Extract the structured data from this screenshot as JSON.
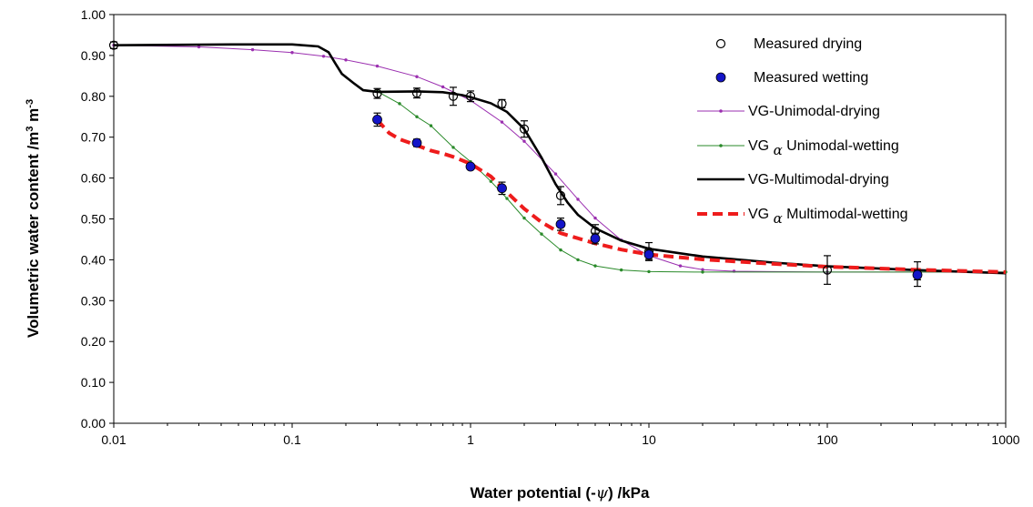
{
  "chart_data": {
    "type": "scatter",
    "xscale": "log",
    "xlim": [
      0.01,
      1000
    ],
    "ylim": [
      0.0,
      1.0
    ],
    "xticks": [
      0.01,
      0.1,
      1,
      10,
      100,
      1000
    ],
    "xtick_labels": [
      "0.01",
      "0.1",
      "1",
      "10",
      "100",
      "1000"
    ],
    "yticks": [
      0,
      0.1,
      0.2,
      0.3,
      0.4,
      0.5,
      0.6,
      0.7,
      0.8,
      0.9,
      1.0
    ],
    "ytick_labels": [
      "0.00",
      "0.10",
      "0.20",
      "0.30",
      "0.40",
      "0.50",
      "0.60",
      "0.70",
      "0.80",
      "0.90",
      "1.00"
    ],
    "xlabel": {
      "pre": "Water potential (-",
      "sym": "ψ",
      "post": ") /kPa"
    },
    "ylabel": {
      "pre": "Volumetric water content /m",
      "sup1": "3",
      "mid": " m",
      "sup2": "-3"
    },
    "grid": false,
    "legend_position": "top-right",
    "series": [
      {
        "name": "Measured drying",
        "kind": "marker-open",
        "color": "#000000",
        "points": [
          {
            "x": 0.01,
            "y": 0.925,
            "err": 0.008
          },
          {
            "x": 0.3,
            "y": 0.807,
            "err": 0.012
          },
          {
            "x": 0.5,
            "y": 0.808,
            "err": 0.012
          },
          {
            "x": 0.8,
            "y": 0.8,
            "err": 0.022
          },
          {
            "x": 1.0,
            "y": 0.8,
            "err": 0.013
          },
          {
            "x": 1.5,
            "y": 0.782,
            "err": 0.01
          },
          {
            "x": 2.0,
            "y": 0.72,
            "err": 0.02
          },
          {
            "x": 3.2,
            "y": 0.557,
            "err": 0.022
          },
          {
            "x": 5.0,
            "y": 0.47,
            "err": 0.016
          },
          {
            "x": 10,
            "y": 0.42,
            "err": 0.022
          },
          {
            "x": 100,
            "y": 0.375,
            "err": 0.035
          },
          {
            "x": 320,
            "y": 0.365,
            "err": 0.03
          }
        ]
      },
      {
        "name": "Measured wetting",
        "kind": "marker-filled",
        "color": "#1414c8",
        "points": [
          {
            "x": 0.3,
            "y": 0.743,
            "err": 0.016
          },
          {
            "x": 0.5,
            "y": 0.686,
            "err": 0.009
          },
          {
            "x": 1.0,
            "y": 0.628,
            "err": 0.006
          },
          {
            "x": 1.5,
            "y": 0.575,
            "err": 0.015
          },
          {
            "x": 3.2,
            "y": 0.487,
            "err": 0.015
          },
          {
            "x": 5.0,
            "y": 0.452,
            "err": 0.013
          },
          {
            "x": 10,
            "y": 0.413,
            "err": 0.012
          },
          {
            "x": 320,
            "y": 0.363,
            "err": 0.012
          }
        ]
      },
      {
        "name": "VG-Unimodal-drying",
        "kind": "line-dots",
        "color": "#9b2fb0",
        "points": [
          {
            "x": 0.01,
            "y": 0.925
          },
          {
            "x": 0.03,
            "y": 0.921
          },
          {
            "x": 0.06,
            "y": 0.914
          },
          {
            "x": 0.1,
            "y": 0.907
          },
          {
            "x": 0.15,
            "y": 0.898
          },
          {
            "x": 0.2,
            "y": 0.889
          },
          {
            "x": 0.3,
            "y": 0.874
          },
          {
            "x": 0.5,
            "y": 0.848
          },
          {
            "x": 0.7,
            "y": 0.823
          },
          {
            "x": 1.0,
            "y": 0.79
          },
          {
            "x": 1.5,
            "y": 0.737
          },
          {
            "x": 2.0,
            "y": 0.69
          },
          {
            "x": 3.0,
            "y": 0.61
          },
          {
            "x": 4.0,
            "y": 0.548
          },
          {
            "x": 5.0,
            "y": 0.502
          },
          {
            "x": 7.0,
            "y": 0.448
          },
          {
            "x": 10,
            "y": 0.41
          },
          {
            "x": 15,
            "y": 0.385
          },
          {
            "x": 20,
            "y": 0.376
          },
          {
            "x": 30,
            "y": 0.372
          },
          {
            "x": 100,
            "y": 0.37
          },
          {
            "x": 1000,
            "y": 0.37
          }
        ]
      },
      {
        "name": "Unimodal-wetting",
        "prefix": "VG",
        "kind": "line-dots",
        "color": "#2a8a2a",
        "points": [
          {
            "x": 0.3,
            "y": 0.812
          },
          {
            "x": 0.4,
            "y": 0.782
          },
          {
            "x": 0.5,
            "y": 0.75
          },
          {
            "x": 0.6,
            "y": 0.728
          },
          {
            "x": 0.8,
            "y": 0.675
          },
          {
            "x": 1.0,
            "y": 0.64
          },
          {
            "x": 1.3,
            "y": 0.592
          },
          {
            "x": 1.6,
            "y": 0.55
          },
          {
            "x": 2.0,
            "y": 0.502
          },
          {
            "x": 2.5,
            "y": 0.463
          },
          {
            "x": 3.2,
            "y": 0.424
          },
          {
            "x": 4.0,
            "y": 0.4
          },
          {
            "x": 5.0,
            "y": 0.385
          },
          {
            "x": 7.0,
            "y": 0.375
          },
          {
            "x": 10,
            "y": 0.371
          },
          {
            "x": 20,
            "y": 0.37
          },
          {
            "x": 1000,
            "y": 0.37
          }
        ]
      },
      {
        "name": "VG-Multimodal-drying",
        "kind": "line-solid",
        "color": "#000000",
        "points": [
          {
            "x": 0.01,
            "y": 0.925
          },
          {
            "x": 0.05,
            "y": 0.927
          },
          {
            "x": 0.1,
            "y": 0.927
          },
          {
            "x": 0.14,
            "y": 0.922
          },
          {
            "x": 0.16,
            "y": 0.908
          },
          {
            "x": 0.175,
            "y": 0.88
          },
          {
            "x": 0.19,
            "y": 0.855
          },
          {
            "x": 0.22,
            "y": 0.833
          },
          {
            "x": 0.25,
            "y": 0.815
          },
          {
            "x": 0.3,
            "y": 0.811
          },
          {
            "x": 0.5,
            "y": 0.812
          },
          {
            "x": 0.7,
            "y": 0.81
          },
          {
            "x": 0.9,
            "y": 0.803
          },
          {
            "x": 1.0,
            "y": 0.798
          },
          {
            "x": 1.3,
            "y": 0.783
          },
          {
            "x": 1.6,
            "y": 0.762
          },
          {
            "x": 2.0,
            "y": 0.72
          },
          {
            "x": 2.5,
            "y": 0.65
          },
          {
            "x": 3.0,
            "y": 0.585
          },
          {
            "x": 3.5,
            "y": 0.54
          },
          {
            "x": 4.0,
            "y": 0.51
          },
          {
            "x": 5.0,
            "y": 0.477
          },
          {
            "x": 7.0,
            "y": 0.447
          },
          {
            "x": 10,
            "y": 0.427
          },
          {
            "x": 20,
            "y": 0.408
          },
          {
            "x": 50,
            "y": 0.393
          },
          {
            "x": 100,
            "y": 0.384
          },
          {
            "x": 300,
            "y": 0.375
          },
          {
            "x": 1000,
            "y": 0.367
          }
        ]
      },
      {
        "name": "Multimodal-wetting",
        "prefix": "VG",
        "kind": "line-dashed",
        "color": "#ee1c1c",
        "points": [
          {
            "x": 0.3,
            "y": 0.742
          },
          {
            "x": 0.35,
            "y": 0.71
          },
          {
            "x": 0.4,
            "y": 0.695
          },
          {
            "x": 0.5,
            "y": 0.68
          },
          {
            "x": 0.6,
            "y": 0.667
          },
          {
            "x": 0.7,
            "y": 0.66
          },
          {
            "x": 0.8,
            "y": 0.652
          },
          {
            "x": 1.0,
            "y": 0.635
          },
          {
            "x": 1.3,
            "y": 0.604
          },
          {
            "x": 1.6,
            "y": 0.565
          },
          {
            "x": 2.0,
            "y": 0.525
          },
          {
            "x": 2.5,
            "y": 0.492
          },
          {
            "x": 3.2,
            "y": 0.465
          },
          {
            "x": 5.0,
            "y": 0.44
          },
          {
            "x": 7.0,
            "y": 0.425
          },
          {
            "x": 10,
            "y": 0.413
          },
          {
            "x": 20,
            "y": 0.401
          },
          {
            "x": 50,
            "y": 0.39
          },
          {
            "x": 100,
            "y": 0.383
          },
          {
            "x": 300,
            "y": 0.376
          },
          {
            "x": 1000,
            "y": 0.37
          }
        ]
      }
    ]
  }
}
